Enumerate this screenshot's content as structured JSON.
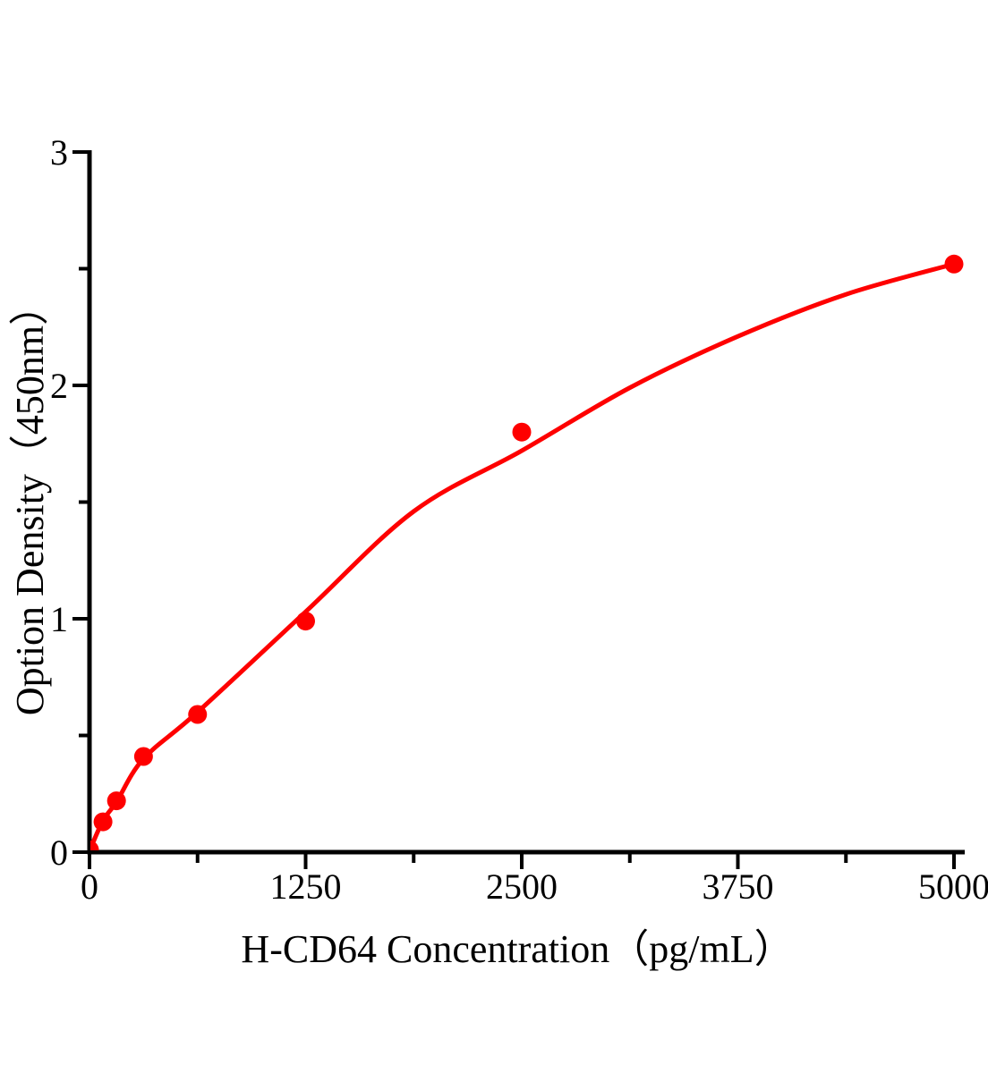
{
  "page": {
    "background_color": "#ffffff",
    "description": "ELISA standard curve plot"
  },
  "chart_data": {
    "type": "scatter",
    "title": "",
    "xlabel": "H-CD64 Concentration（pg/mL）",
    "ylabel": "Option Density（450nm）",
    "xlim": [
      0,
      5000
    ],
    "ylim": [
      0,
      3
    ],
    "grid": false,
    "legend": "none",
    "axis_color": "#000000",
    "x_major_ticks": [
      0,
      1250,
      2500,
      3750,
      5000
    ],
    "x_minor_ticks": [
      625,
      1875,
      3125,
      4375
    ],
    "y_major_ticks": [
      0,
      1,
      2,
      3
    ],
    "y_minor_ticks": [
      0.5,
      1.5,
      2.5
    ],
    "series": [
      {
        "name": "H-CD64 standard points",
        "color": "#fe0000",
        "marker": "circle",
        "points": [
          {
            "x": 0,
            "y": 0.01
          },
          {
            "x": 78.13,
            "y": 0.13
          },
          {
            "x": 156.25,
            "y": 0.22
          },
          {
            "x": 312.5,
            "y": 0.41
          },
          {
            "x": 625,
            "y": 0.59
          },
          {
            "x": 1250,
            "y": 0.99
          },
          {
            "x": 2500,
            "y": 1.8
          },
          {
            "x": 5000,
            "y": 2.52
          }
        ]
      }
    ],
    "fit_curve": {
      "name": "fitted standard curve",
      "color": "#fe0000",
      "samples": [
        {
          "x": 0,
          "y": 0.005
        },
        {
          "x": 78,
          "y": 0.135
        },
        {
          "x": 156,
          "y": 0.215
        },
        {
          "x": 312,
          "y": 0.4
        },
        {
          "x": 625,
          "y": 0.6
        },
        {
          "x": 1250,
          "y": 1.03
        },
        {
          "x": 1875,
          "y": 1.46
        },
        {
          "x": 2500,
          "y": 1.72
        },
        {
          "x": 3125,
          "y": 1.99
        },
        {
          "x": 3750,
          "y": 2.21
        },
        {
          "x": 4375,
          "y": 2.39
        },
        {
          "x": 5000,
          "y": 2.52
        }
      ]
    }
  }
}
